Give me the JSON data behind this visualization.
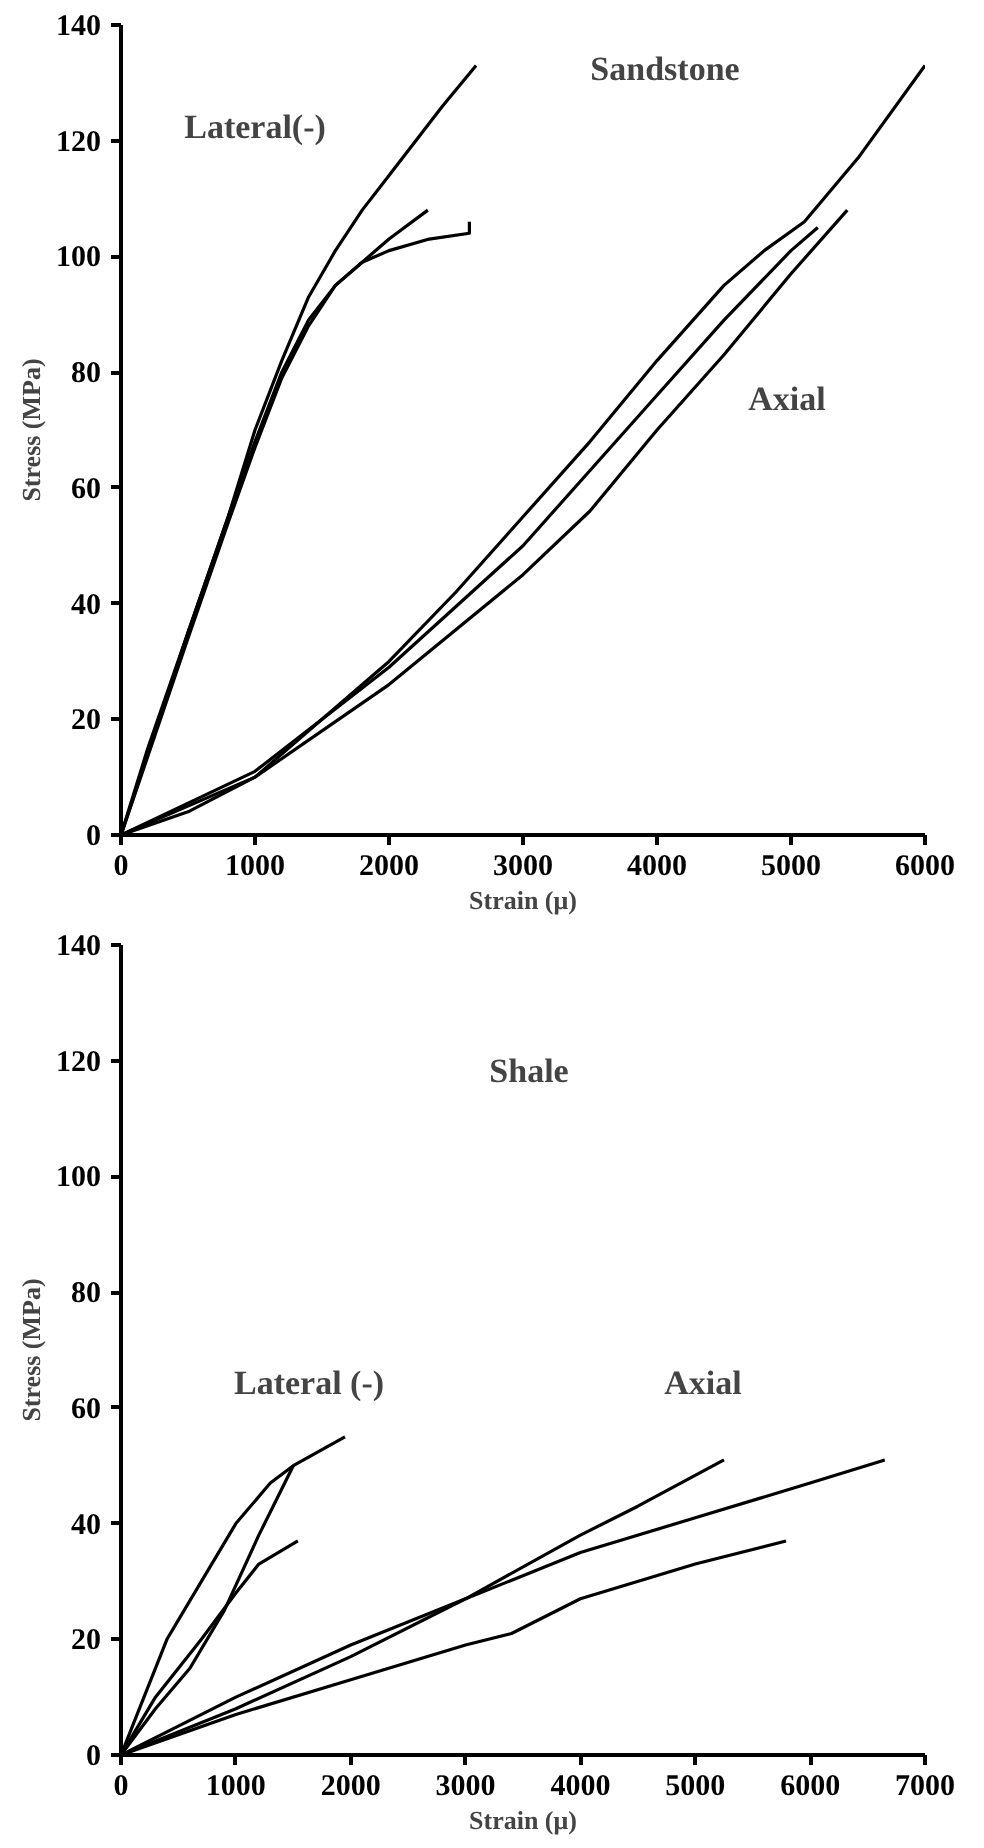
{
  "chart_data": [
    {
      "type": "line",
      "xlabel": "Strain (μ)",
      "ylabel": "Stress (MPa)",
      "xlim": [
        0,
        6000
      ],
      "ylim": [
        0,
        140
      ],
      "xticks": [
        0,
        1000,
        2000,
        3000,
        4000,
        5000,
        6000
      ],
      "yticks": [
        0,
        20,
        40,
        60,
        80,
        100,
        120,
        140
      ],
      "grid": false,
      "marker": "none",
      "line_style": "solid",
      "annotations": [
        "Sandstone",
        "Lateral(-)",
        "Axial"
      ],
      "series": [
        {
          "color": "#000000",
          "x": [
            0,
            200,
            500,
            800,
            1000,
            1200,
            1400,
            1600,
            1800,
            2000,
            2200,
            2400,
            2650
          ],
          "values": [
            0,
            15,
            35,
            55,
            70,
            82,
            93,
            101,
            108,
            114,
            120,
            126,
            133
          ]
        },
        {
          "color": "#000000",
          "x": [
            0,
            500,
            800,
            1000,
            1200,
            1400,
            1600,
            1800,
            2000,
            2290
          ],
          "values": [
            0,
            35,
            55,
            68,
            80,
            89,
            95,
            99,
            103,
            108
          ]
        },
        {
          "color": "#000000",
          "x": [
            0,
            500,
            800,
            1000,
            1200,
            1400,
            1600,
            1800,
            2000,
            2300,
            2600,
            2600
          ],
          "values": [
            0,
            34,
            54,
            67,
            79,
            88,
            95,
            99,
            101,
            103,
            104,
            106
          ]
        },
        {
          "color": "#000000",
          "x": [
            0,
            500,
            1000,
            1500,
            2000,
            2500,
            3000,
            3500,
            4000,
            4500,
            4800,
            5100,
            5500,
            6000
          ],
          "values": [
            0,
            4,
            10,
            20,
            30,
            42,
            55,
            68,
            82,
            95,
            101,
            106,
            117,
            133
          ]
        },
        {
          "color": "#000000",
          "x": [
            0,
            1000,
            2000,
            3000,
            3500,
            4000,
            4500,
            5000,
            5420
          ],
          "values": [
            0,
            10,
            26,
            45,
            56,
            70,
            83,
            97,
            108
          ]
        },
        {
          "color": "#000000",
          "x": [
            0,
            1000,
            2000,
            3000,
            3500,
            4000,
            4500,
            5000,
            5200
          ],
          "values": [
            0,
            11,
            29,
            50,
            63,
            76,
            89,
            101,
            105
          ]
        }
      ]
    },
    {
      "type": "line",
      "xlabel": "Strain (μ)",
      "ylabel": "Stress (MPa)",
      "xlim": [
        0,
        7000
      ],
      "ylim": [
        0,
        140
      ],
      "xticks": [
        0,
        1000,
        2000,
        3000,
        4000,
        5000,
        6000,
        7000
      ],
      "yticks": [
        0,
        20,
        40,
        60,
        80,
        100,
        120,
        140
      ],
      "grid": false,
      "marker": "none",
      "line_style": "solid",
      "annotations": [
        "Shale",
        "Lateral (-)",
        "Axial"
      ],
      "series": [
        {
          "color": "#000000",
          "x": [
            0,
            200,
            400,
            700,
            1000,
            1300,
            1500,
            1950
          ],
          "values": [
            0,
            10,
            20,
            30,
            40,
            47,
            50,
            55
          ]
        },
        {
          "color": "#000000",
          "x": [
            0,
            300,
            600,
            900,
            1200,
            1500
          ],
          "values": [
            0,
            8,
            15,
            25,
            38,
            50
          ]
        },
        {
          "color": "#000000",
          "x": [
            0,
            300,
            700,
            1000,
            1200,
            1540
          ],
          "values": [
            0,
            10,
            20,
            28,
            33,
            37
          ]
        },
        {
          "color": "#000000",
          "x": [
            0,
            1000,
            2000,
            3000,
            4000,
            4500,
            5250
          ],
          "values": [
            0,
            8,
            17,
            27,
            38,
            43,
            51
          ]
        },
        {
          "color": "#000000",
          "x": [
            0,
            1000,
            2000,
            3000,
            4000,
            5000,
            6000,
            6650
          ],
          "values": [
            0,
            10,
            19,
            27,
            35,
            41,
            47,
            51
          ]
        },
        {
          "color": "#000000",
          "x": [
            0,
            1000,
            2000,
            3000,
            3400,
            4000,
            5000,
            5790
          ],
          "values": [
            0,
            7,
            13,
            19,
            21,
            27,
            33,
            37
          ]
        }
      ]
    }
  ]
}
